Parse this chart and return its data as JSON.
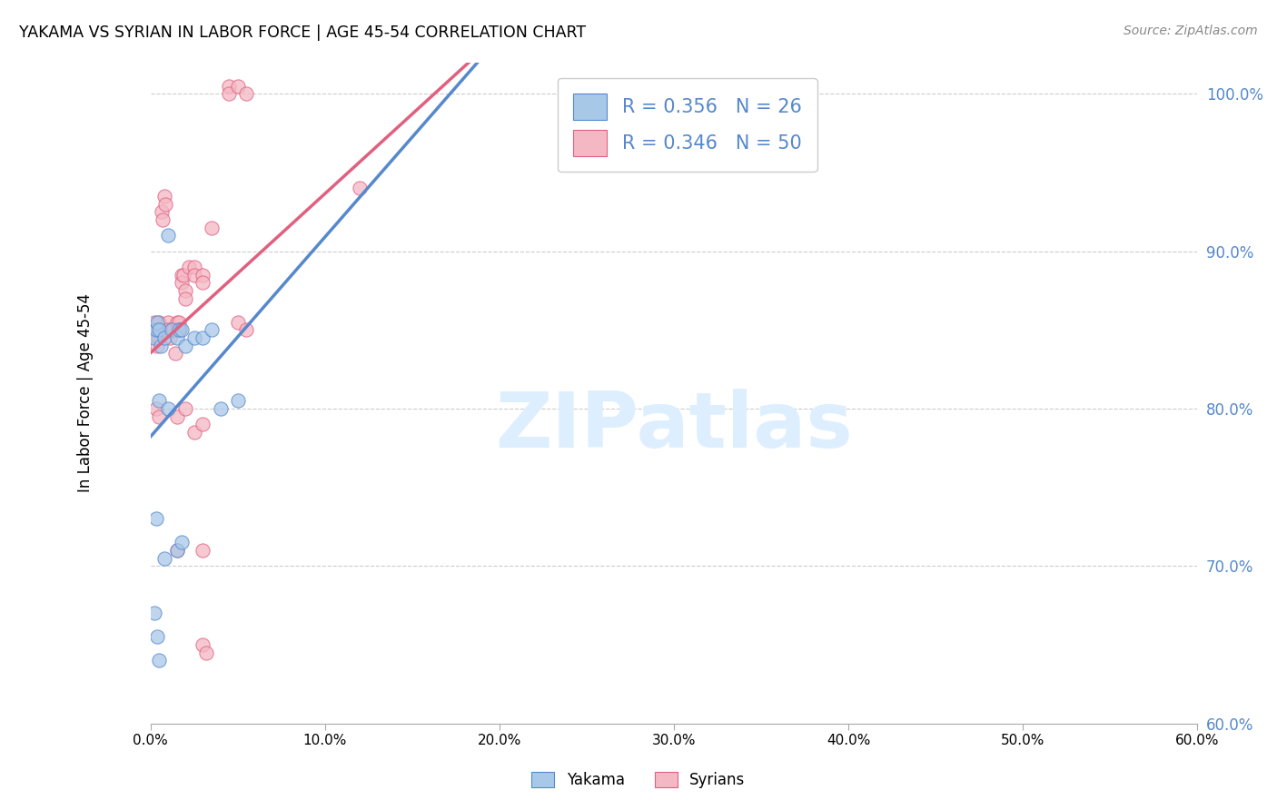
{
  "title": "YAKAMA VS SYRIAN IN LABOR FORCE | AGE 45-54 CORRELATION CHART",
  "source": "Source: ZipAtlas.com",
  "ylabel": "In Labor Force | Age 45-54",
  "xlim": [
    0.0,
    60.0
  ],
  "ylim": [
    60.0,
    102.0
  ],
  "yticks": [
    60.0,
    70.0,
    80.0,
    90.0,
    100.0
  ],
  "xticks": [
    0.0,
    10.0,
    20.0,
    30.0,
    40.0,
    50.0,
    60.0
  ],
  "legend_blue_R": "0.356",
  "legend_blue_N": "26",
  "legend_pink_R": "0.346",
  "legend_pink_N": "50",
  "blue_scatter_color": "#a8c8e8",
  "pink_scatter_color": "#f4b8c4",
  "blue_line_color": "#5588cc",
  "pink_line_color": "#e06080",
  "watermark_color": "#ddeeff",
  "blue_trend": [
    79.5,
    0.22
  ],
  "pink_trend": [
    82.0,
    0.3
  ],
  "yakama_points": [
    [
      0.2,
      84.5
    ],
    [
      0.3,
      85.0
    ],
    [
      0.35,
      85.5
    ],
    [
      0.5,
      85.0
    ],
    [
      0.6,
      84.0
    ],
    [
      0.8,
      84.5
    ],
    [
      1.0,
      91.0
    ],
    [
      1.2,
      85.0
    ],
    [
      1.5,
      84.5
    ],
    [
      1.6,
      85.0
    ],
    [
      1.8,
      85.0
    ],
    [
      2.0,
      84.0
    ],
    [
      2.5,
      84.5
    ],
    [
      3.0,
      84.5
    ],
    [
      3.5,
      85.0
    ],
    [
      4.0,
      80.0
    ],
    [
      5.0,
      80.5
    ],
    [
      0.5,
      80.5
    ],
    [
      1.0,
      80.0
    ],
    [
      0.3,
      73.0
    ],
    [
      0.8,
      70.5
    ],
    [
      1.5,
      71.0
    ],
    [
      1.8,
      71.5
    ],
    [
      0.2,
      67.0
    ],
    [
      0.4,
      65.5
    ],
    [
      0.5,
      64.0
    ]
  ],
  "syrians_points": [
    [
      0.2,
      85.5
    ],
    [
      0.3,
      85.0
    ],
    [
      0.35,
      84.5
    ],
    [
      0.4,
      84.0
    ],
    [
      0.5,
      85.5
    ],
    [
      0.5,
      84.5
    ],
    [
      0.6,
      85.0
    ],
    [
      0.65,
      92.5
    ],
    [
      0.7,
      92.0
    ],
    [
      0.8,
      93.5
    ],
    [
      0.85,
      93.0
    ],
    [
      0.9,
      85.0
    ],
    [
      1.0,
      85.5
    ],
    [
      1.0,
      85.0
    ],
    [
      1.1,
      84.5
    ],
    [
      1.2,
      85.0
    ],
    [
      1.3,
      85.0
    ],
    [
      1.4,
      83.5
    ],
    [
      1.5,
      85.5
    ],
    [
      1.5,
      85.0
    ],
    [
      1.6,
      85.5
    ],
    [
      1.7,
      85.0
    ],
    [
      1.8,
      88.5
    ],
    [
      1.8,
      88.0
    ],
    [
      1.9,
      88.5
    ],
    [
      2.0,
      87.5
    ],
    [
      2.0,
      87.0
    ],
    [
      2.2,
      89.0
    ],
    [
      2.5,
      89.0
    ],
    [
      2.5,
      88.5
    ],
    [
      3.0,
      88.5
    ],
    [
      3.0,
      88.0
    ],
    [
      3.5,
      91.5
    ],
    [
      4.5,
      100.5
    ],
    [
      4.5,
      100.0
    ],
    [
      5.0,
      85.5
    ],
    [
      5.5,
      85.0
    ],
    [
      0.3,
      80.0
    ],
    [
      0.5,
      79.5
    ],
    [
      1.5,
      79.5
    ],
    [
      2.0,
      80.0
    ],
    [
      2.5,
      78.5
    ],
    [
      3.0,
      79.0
    ],
    [
      1.5,
      71.0
    ],
    [
      3.0,
      71.0
    ],
    [
      3.0,
      65.0
    ],
    [
      3.2,
      64.5
    ],
    [
      12.0,
      94.0
    ],
    [
      5.0,
      100.5
    ],
    [
      5.5,
      100.0
    ]
  ]
}
